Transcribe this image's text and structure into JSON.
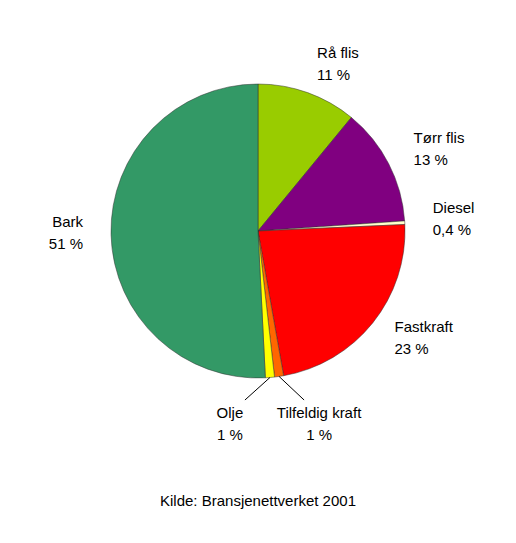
{
  "chart_data": {
    "type": "pie",
    "categories": [
      "Rå flis",
      "Tørr flis",
      "Diesel",
      "Fastkraft",
      "Tilfeldig kraft",
      "Olje",
      "Bark"
    ],
    "values": [
      11,
      13,
      0.4,
      23,
      1,
      1,
      51
    ],
    "value_labels": [
      "11 %",
      "13 %",
      "0,4 %",
      "23 %",
      "1 %",
      "1 %",
      "51 %"
    ],
    "colors": [
      "#99cc00",
      "#800080",
      "#ffffcc",
      "#ff0000",
      "#ff6600",
      "#ffff00",
      "#339966"
    ],
    "data_labels": true,
    "source": "Kilde: Bransjenettverket 2001"
  }
}
